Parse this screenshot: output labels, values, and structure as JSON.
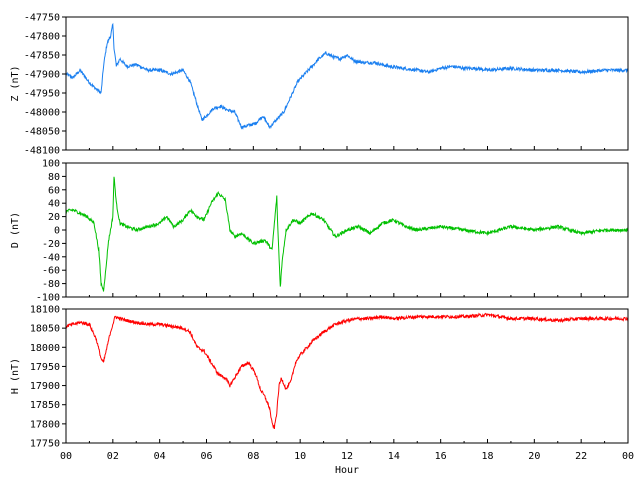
{
  "chart_data": [
    {
      "type": "line",
      "ylabel": "Z (nT)",
      "ylim": [
        -48100,
        -47750
      ],
      "yticks": [
        -47750,
        -47800,
        -47850,
        -47900,
        -47950,
        -48000,
        -48050,
        -48100
      ],
      "xlim": [
        0,
        24
      ],
      "grid": false,
      "series": [
        {
          "color": "#1a7ff0",
          "x": [
            0,
            0.3,
            0.6,
            0.9,
            1.2,
            1.5,
            1.6,
            1.75,
            1.9,
            2.0,
            2.05,
            2.15,
            2.3,
            2.6,
            3.0,
            3.5,
            4.0,
            4.5,
            5.0,
            5.3,
            5.6,
            5.8,
            6.0,
            6.3,
            6.6,
            6.9,
            7.2,
            7.5,
            7.8,
            8.1,
            8.4,
            8.7,
            9.0,
            9.3,
            9.6,
            9.9,
            10.2,
            10.5,
            10.8,
            11.1,
            11.4,
            11.7,
            12.0,
            12.3,
            12.7,
            13.2,
            13.8,
            14.4,
            15.0,
            15.5,
            16.0,
            16.5,
            17.0,
            17.5,
            18.0,
            19.0,
            20.0,
            21.0,
            22.0,
            23.0,
            24.0
          ],
          "y": [
            -47900,
            -47910,
            -47890,
            -47915,
            -47935,
            -47950,
            -47880,
            -47820,
            -47800,
            -47770,
            -47830,
            -47880,
            -47860,
            -47880,
            -47875,
            -47890,
            -47890,
            -47900,
            -47890,
            -47920,
            -47980,
            -48020,
            -48010,
            -47990,
            -47985,
            -47995,
            -48000,
            -48040,
            -48035,
            -48030,
            -48010,
            -48040,
            -48020,
            -48000,
            -47960,
            -47920,
            -47900,
            -47880,
            -47860,
            -47845,
            -47855,
            -47860,
            -47850,
            -47865,
            -47870,
            -47870,
            -47880,
            -47885,
            -47890,
            -47895,
            -47885,
            -47880,
            -47885,
            -47885,
            -47890,
            -47885,
            -47890,
            -47890,
            -47895,
            -47890,
            -47890
          ]
        }
      ]
    },
    {
      "type": "line",
      "ylabel": "D (nT)",
      "ylim": [
        -100,
        100
      ],
      "yticks": [
        100,
        80,
        60,
        40,
        20,
        0,
        -20,
        -40,
        -60,
        -80,
        -100
      ],
      "xlim": [
        0,
        24
      ],
      "grid": false,
      "series": [
        {
          "color": "#00c000",
          "x": [
            0,
            0.3,
            0.6,
            0.9,
            1.2,
            1.4,
            1.5,
            1.6,
            1.7,
            1.8,
            1.9,
            2.0,
            2.05,
            2.15,
            2.3,
            2.6,
            3.0,
            3.5,
            4.0,
            4.3,
            4.6,
            5.0,
            5.3,
            5.6,
            5.9,
            6.2,
            6.5,
            6.8,
            7.0,
            7.2,
            7.5,
            8.0,
            8.5,
            8.8,
            9.0,
            9.05,
            9.15,
            9.25,
            9.4,
            9.7,
            10.0,
            10.5,
            11.0,
            11.5,
            12.0,
            12.5,
            13.0,
            13.5,
            14.0,
            14.5,
            15.0,
            16.0,
            17.0,
            18.0,
            19.0,
            20.0,
            21.0,
            22.0,
            23.0,
            24.0
          ],
          "y": [
            28,
            30,
            25,
            20,
            10,
            -30,
            -80,
            -90,
            -60,
            -20,
            0,
            20,
            80,
            40,
            10,
            5,
            0,
            5,
            10,
            20,
            5,
            15,
            30,
            20,
            15,
            40,
            55,
            45,
            0,
            -10,
            -5,
            -20,
            -15,
            -30,
            50,
            0,
            -85,
            -40,
            0,
            15,
            10,
            25,
            15,
            -10,
            0,
            5,
            -5,
            10,
            15,
            5,
            0,
            5,
            0,
            -5,
            5,
            0,
            5,
            -5,
            0,
            0
          ]
        }
      ]
    },
    {
      "type": "line",
      "ylabel": "H (nT)",
      "xlabel": "Hour",
      "ylim": [
        17750,
        18100
      ],
      "yticks": [
        18100,
        18050,
        18000,
        17950,
        17900,
        17850,
        17800,
        17750
      ],
      "xlim": [
        0,
        24
      ],
      "xticks": [
        "00",
        "02",
        "04",
        "06",
        "08",
        "10",
        "12",
        "14",
        "16",
        "18",
        "20",
        "22",
        "00"
      ],
      "grid": false,
      "series": [
        {
          "color": "#ff0000",
          "x": [
            0,
            0.3,
            0.6,
            1.0,
            1.3,
            1.5,
            1.6,
            1.75,
            1.9,
            2.1,
            2.3,
            2.6,
            3.0,
            3.5,
            4.0,
            4.5,
            5.0,
            5.3,
            5.6,
            5.9,
            6.2,
            6.5,
            6.8,
            7.0,
            7.2,
            7.5,
            7.8,
            8.1,
            8.3,
            8.5,
            8.7,
            8.8,
            8.9,
            9.0,
            9.1,
            9.2,
            9.4,
            9.6,
            9.8,
            10.0,
            10.3,
            10.6,
            11.0,
            11.5,
            12.0,
            12.5,
            13.0,
            13.5,
            14.0,
            15.0,
            16.0,
            17.0,
            18.0,
            19.0,
            20.0,
            21.0,
            22.0,
            23.0,
            24.0
          ],
          "y": [
            18055,
            18060,
            18065,
            18060,
            18020,
            17970,
            17960,
            18000,
            18040,
            18080,
            18075,
            18070,
            18065,
            18060,
            18060,
            18055,
            18050,
            18040,
            18000,
            17990,
            17960,
            17930,
            17920,
            17900,
            17920,
            17950,
            17960,
            17930,
            17890,
            17870,
            17840,
            17800,
            17790,
            17830,
            17900,
            17920,
            17890,
            17910,
            17960,
            17980,
            18000,
            18020,
            18040,
            18060,
            18070,
            18075,
            18075,
            18080,
            18075,
            18080,
            18080,
            18080,
            18085,
            18075,
            18075,
            18070,
            18075,
            18075,
            18075
          ]
        }
      ]
    }
  ]
}
